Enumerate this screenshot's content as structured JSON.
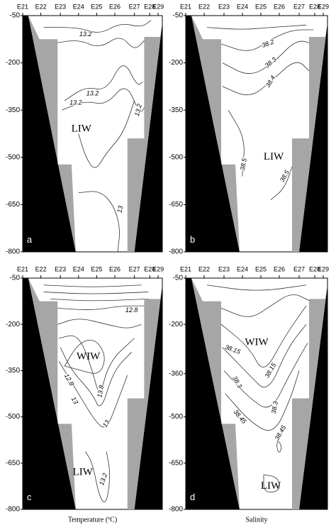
{
  "chart_data": [
    {
      "type": "contour",
      "panel": "a",
      "categories": [
        "E21",
        "E22",
        "E23",
        "E24",
        "E25",
        "E26",
        "E27",
        "E28",
        "E29"
      ],
      "ylim": [
        -800,
        -50
      ],
      "yticks": [
        -50,
        -200,
        -350,
        -500,
        -650,
        -800
      ],
      "contour_labels": [
        13.2,
        13.2,
        13.2,
        13.2,
        13
      ],
      "annotations": [
        "LIW"
      ]
    },
    {
      "type": "contour",
      "panel": "b",
      "categories": [
        "E21",
        "E22",
        "E23",
        "E24",
        "E25",
        "E26",
        "E27",
        "E28",
        "E29"
      ],
      "ylim": [
        -800,
        -50
      ],
      "yticks": [
        -50,
        -200,
        -350,
        -500,
        -650,
        -800
      ],
      "contour_labels": [
        38.2,
        38.3,
        38.4,
        38.5,
        38.5
      ],
      "annotations": [
        "LIW"
      ]
    },
    {
      "type": "contour",
      "panel": "c",
      "categories": [
        "E21",
        "E22",
        "E23",
        "E24",
        "E25",
        "E26",
        "E27",
        "E28",
        "E29"
      ],
      "ylim": [
        -800,
        -50
      ],
      "yticks": [
        -50,
        -200,
        -350,
        -500,
        -650,
        -800
      ],
      "contour_labels": [
        12.8,
        12.8,
        13,
        13.8,
        13,
        13.2
      ],
      "annotations": [
        "WIW",
        "LIW"
      ],
      "xlabel": "Temperature (ºC)"
    },
    {
      "type": "contour",
      "panel": "d",
      "categories": [
        "E21",
        "E22",
        "E23",
        "E24",
        "E25",
        "E26",
        "E27",
        "E28",
        "E29"
      ],
      "ylim": [
        -800,
        -50
      ],
      "yticks": [
        -50,
        -200,
        -360,
        -500,
        -650,
        -800
      ],
      "contour_labels": [
        38.15,
        38.15,
        38.3,
        38.3,
        38.45,
        38.45
      ],
      "annotations": [
        "WIW",
        "LIW"
      ],
      "xlabel": "Salinity"
    }
  ]
}
